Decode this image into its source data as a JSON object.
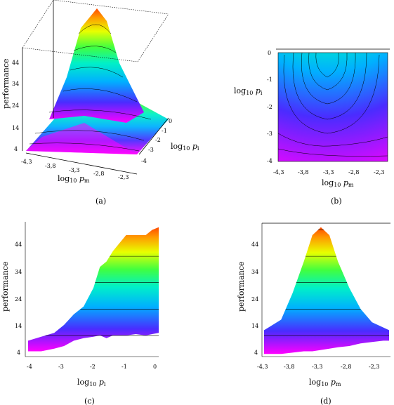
{
  "chart_data": [
    {
      "panel": "a",
      "type": "surface3d",
      "caption": "(a)",
      "zlabel": "performance",
      "xlabel": "log10 pm",
      "ylabel": "log10 pi",
      "x_ticks": [
        "-4,3",
        "-3,8",
        "-3,3",
        "-2,8",
        "-2,3"
      ],
      "y_ticks": [
        "0",
        "-1",
        "-2",
        "-3",
        "-4"
      ],
      "z_ticks": [
        "4",
        "14",
        "24",
        "34",
        "44"
      ],
      "zlim": [
        4,
        50
      ],
      "peak": {
        "x": -3.3,
        "y": 0,
        "z": 50
      }
    },
    {
      "panel": "b",
      "type": "heatmap",
      "caption": "(b)",
      "xlabel": "log10 pm",
      "ylabel": "log10 pi",
      "x_ticks": [
        "-4,3",
        "-3,8",
        "-3,3",
        "-2,8",
        "-2,3"
      ],
      "y_ticks": [
        "0",
        "-1",
        "-2",
        "-3",
        "-4"
      ],
      "xlim": [
        -4.3,
        -2.1
      ],
      "ylim": [
        -4,
        0
      ],
      "peak": {
        "x": -3.3,
        "y": 0,
        "z": 50
      }
    },
    {
      "panel": "c",
      "type": "area",
      "caption": "(c)",
      "xlabel": "log10 pi",
      "ylabel": "performance",
      "x_ticks": [
        "-4",
        "-3",
        "-2",
        "-1",
        "0"
      ],
      "y_ticks": [
        "4",
        "14",
        "24",
        "34",
        "44"
      ],
      "xlim": [
        -4,
        0
      ],
      "ylim": [
        2,
        52
      ],
      "x": [
        -4,
        -3.6,
        -3.2,
        -2.9,
        -2.6,
        -2.3,
        -2.0,
        -1.8,
        -1.6,
        -1.4,
        -1.0,
        -0.7,
        -0.4,
        -0.2,
        0
      ],
      "upper": [
        8,
        9.5,
        11,
        14,
        18,
        21,
        28,
        36,
        38,
        42,
        48,
        48,
        48,
        50,
        51
      ],
      "lower": [
        4,
        4,
        5,
        6,
        8,
        9,
        9.5,
        10,
        9,
        10,
        10,
        10.5,
        10,
        10.5,
        11
      ]
    },
    {
      "panel": "d",
      "type": "area",
      "caption": "(d)",
      "xlabel": "log10 pm",
      "ylabel": "performance",
      "x_ticks": [
        "-4,3",
        "-3,8",
        "-3,3",
        "-2,8",
        "-2,3"
      ],
      "y_ticks": [
        "4",
        "14",
        "24",
        "34",
        "44"
      ],
      "xlim": [
        -4.3,
        -2.1
      ],
      "ylim": [
        2,
        52
      ],
      "x": [
        -4.3,
        -4.0,
        -3.8,
        -3.6,
        -3.45,
        -3.3,
        -3.15,
        -3.0,
        -2.8,
        -2.6,
        -2.4,
        -2.2,
        -2.1
      ],
      "upper": [
        12,
        16,
        26,
        38,
        48,
        51,
        48,
        38,
        28,
        20,
        15,
        13,
        12
      ],
      "lower": [
        3,
        3,
        3.5,
        4,
        4,
        4.5,
        5,
        5.5,
        6,
        7,
        7.5,
        8,
        8
      ]
    }
  ]
}
